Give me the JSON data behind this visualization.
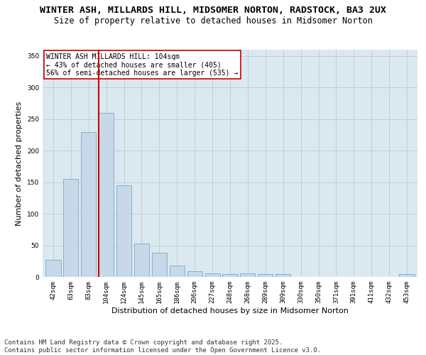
{
  "title1": "WINTER ASH, MILLARDS HILL, MIDSOMER NORTON, RADSTOCK, BA3 2UX",
  "title2": "Size of property relative to detached houses in Midsomer Norton",
  "xlabel": "Distribution of detached houses by size in Midsomer Norton",
  "ylabel": "Number of detached properties",
  "categories": [
    "42sqm",
    "63sqm",
    "83sqm",
    "104sqm",
    "124sqm",
    "145sqm",
    "165sqm",
    "186sqm",
    "206sqm",
    "227sqm",
    "248sqm",
    "268sqm",
    "289sqm",
    "309sqm",
    "330sqm",
    "350sqm",
    "371sqm",
    "391sqm",
    "411sqm",
    "432sqm",
    "453sqm"
  ],
  "values": [
    27,
    155,
    230,
    260,
    145,
    53,
    38,
    18,
    9,
    6,
    5,
    6,
    4,
    4,
    0,
    0,
    0,
    0,
    0,
    0,
    4
  ],
  "bar_color": "#c8d8e8",
  "bar_edge_color": "#7aaac8",
  "highlight_index": 3,
  "highlight_line_color": "#cc0000",
  "ylim": [
    0,
    360
  ],
  "yticks": [
    0,
    50,
    100,
    150,
    200,
    250,
    300,
    350
  ],
  "annotation_text": "WINTER ASH MILLARDS HILL: 104sqm\n← 43% of detached houses are smaller (405)\n56% of semi-detached houses are larger (535) →",
  "annotation_box_edge": "#cc0000",
  "footer1": "Contains HM Land Registry data © Crown copyright and database right 2025.",
  "footer2": "Contains public sector information licensed under the Open Government Licence v3.0.",
  "bg_color": "#ffffff",
  "plot_bg_color": "#dce8f0",
  "grid_color": "#b8ccd8",
  "title_fontsize": 9.5,
  "subtitle_fontsize": 8.5,
  "axis_label_fontsize": 8,
  "tick_fontsize": 6.5,
  "annotation_fontsize": 7,
  "footer_fontsize": 6.5
}
